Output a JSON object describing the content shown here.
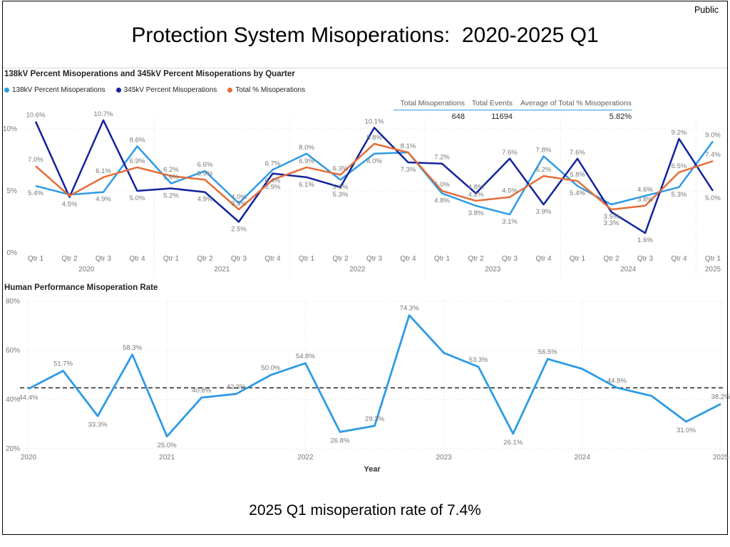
{
  "page": {
    "classification_label": "Public",
    "title": "Protection System Misoperations:  2020-2025 Q1",
    "caption": "2025 Q1 misoperation rate of 7.4%"
  },
  "summary_table": {
    "headers": [
      "Total Misoperations",
      "Total Events",
      "Average of Total % Misoperations"
    ],
    "values": [
      "648",
      "11694",
      "5.82%"
    ]
  },
  "chart_data": [
    {
      "type": "line",
      "title": "138kV Percent Misoperations and 345kV Percent Misoperations by Quarter",
      "legend_position": "top",
      "grid": "dotted",
      "ylim": [
        0,
        12
      ],
      "y_ticks": [
        {
          "label": "0%",
          "value": 0
        },
        {
          "label": "5%",
          "value": 5
        },
        {
          "label": "10%",
          "value": 10
        }
      ],
      "x_quarter_labels": [
        "Qtr 1",
        "Qtr 2",
        "Qtr 3",
        "Qtr 4",
        "Qtr 1",
        "Qtr 2",
        "Qtr 3",
        "Qtr 4",
        "Qtr 1",
        "Qtr 2",
        "Qtr 3",
        "Qtr 4",
        "Qtr 1",
        "Qtr 2",
        "Qtr 3",
        "Qtr 4",
        "Qtr 1",
        "Qtr 2",
        "Qtr 3",
        "Qtr 4",
        "Qtr 1"
      ],
      "x_year_labels": [
        "2020",
        "2021",
        "2022",
        "2023",
        "2024",
        "2025"
      ],
      "series": [
        {
          "name": "138kV Percent Misoperations",
          "color": "#2D9BE6",
          "values": [
            5.4,
            4.7,
            4.9,
            8.6,
            5.6,
            6.6,
            4.0,
            6.7,
            8.0,
            5.9,
            8.0,
            8.1,
            4.8,
            3.8,
            3.1,
            7.8,
            5.4,
            3.9,
            4.6,
            5.3,
            9.0
          ],
          "labels": [
            "5.4%",
            null,
            "4.9%",
            "8.6%",
            "5.6%",
            "6.6%",
            "4.0%",
            "6.7%",
            "8.0%",
            "5.9%",
            "8.0%",
            "8.1%",
            "4.8%",
            "3.8%",
            "3.1%",
            "7.8%",
            "5.4%",
            null,
            "4.6%",
            "5.3%",
            "9.0%"
          ]
        },
        {
          "name": "345kV Percent Misoperations",
          "color": "#12239E",
          "values": [
            10.6,
            4.5,
            10.7,
            5.0,
            5.2,
            4.9,
            2.5,
            6.4,
            6.1,
            5.3,
            10.1,
            7.3,
            7.2,
            4.8,
            7.6,
            3.9,
            7.6,
            3.3,
            1.6,
            9.2,
            5.0
          ],
          "labels": [
            "10.6%",
            "4.5%",
            "10.7%",
            "5.0%",
            "5.2%",
            "4.9%",
            "2.5%",
            "6.4%",
            "6.1%",
            "5.3%",
            "10.1%",
            "7.3%",
            "7.2%",
            "4.8%",
            "7.6%",
            "3.9%",
            "7.6%",
            "3.3%",
            "1.6%",
            "9.2%",
            "5.0%"
          ]
        },
        {
          "name": "Total % Misoperations",
          "color": "#E66C37",
          "values": [
            7.0,
            4.6,
            6.1,
            6.9,
            6.2,
            5.9,
            3.5,
            5.9,
            6.9,
            6.3,
            8.8,
            8.1,
            5.0,
            4.2,
            4.5,
            6.2,
            5.8,
            3.5,
            3.8,
            6.5,
            7.4
          ],
          "labels": [
            "7.0%",
            null,
            "6.1%",
            "6.9%",
            "6.2%",
            "5.9%",
            "3.5%",
            "5.9%",
            "6.9%",
            "6.3%",
            "8.8%",
            null,
            "5.0%",
            "4.2%",
            "4.5%",
            "6.2%",
            "5.8%",
            "3.5%",
            "3.8%",
            "6.5%",
            "7.4%"
          ]
        }
      ]
    },
    {
      "type": "line",
      "title": "Human Performance Misoperation Rate",
      "xlabel": "Year",
      "grid": "dotted",
      "ylim": [
        20,
        80
      ],
      "average_line_value": 44.8,
      "y_ticks": [
        {
          "label": "20%",
          "value": 20
        },
        {
          "label": "40%",
          "value": 40
        },
        {
          "label": "60%",
          "value": 60
        },
        {
          "label": "80%",
          "value": 80
        }
      ],
      "x_year_labels": [
        "2020",
        "2021",
        "2022",
        "2023",
        "2024",
        "2025"
      ],
      "series": [
        {
          "name": "Human Performance Misoperation Rate",
          "color": "#2D9BE6",
          "values": [
            44.4,
            51.7,
            33.3,
            58.3,
            25.0,
            40.8,
            42.3,
            50.0,
            54.8,
            26.8,
            29.3,
            74.3,
            59.0,
            53.3,
            26.1,
            56.5,
            52.5,
            44.8,
            41.5,
            31.0,
            38.2
          ],
          "labels": [
            "44.4%",
            "51.7%",
            "33.3%",
            "58.3%",
            "25.0%",
            "40.8%",
            "42.3%",
            "50.0%",
            "54.8%",
            "26.8%",
            "29.3%",
            "74.3%",
            null,
            "53.3%",
            "26.1%",
            "56.5%",
            null,
            "44.8%",
            null,
            "31.0%",
            "38.2%"
          ]
        }
      ]
    }
  ]
}
